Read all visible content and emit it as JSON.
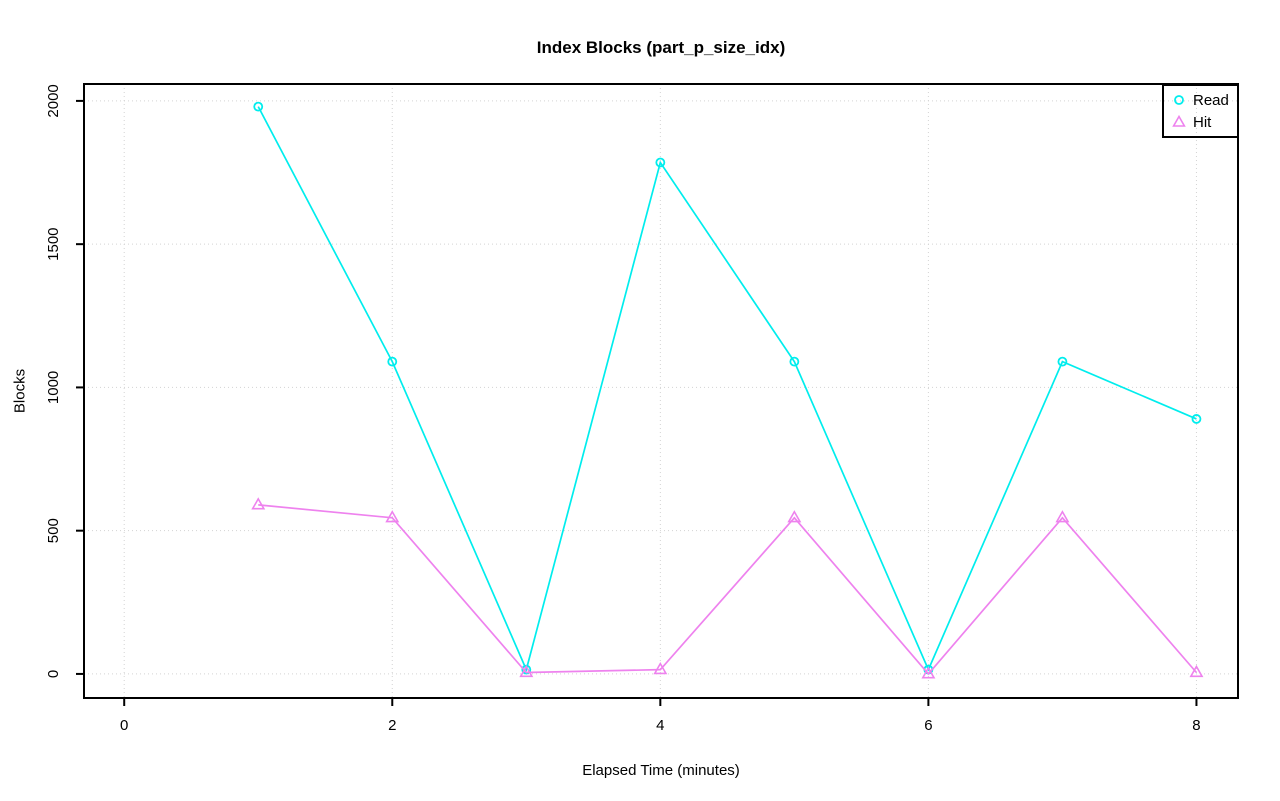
{
  "chart_data": {
    "type": "line",
    "title": "Index Blocks (part_p_size_idx)",
    "xlabel": "Elapsed Time (minutes)",
    "ylabel": "Blocks",
    "x": [
      1,
      2,
      3,
      4,
      5,
      6,
      7,
      8
    ],
    "series": [
      {
        "name": "Read",
        "marker": "circle",
        "color": "#00EDED",
        "values": [
          1980,
          1090,
          15,
          1785,
          1090,
          15,
          1090,
          890
        ]
      },
      {
        "name": "Hit",
        "marker": "triangle",
        "color": "#EE82EE",
        "values": [
          590,
          545,
          5,
          15,
          545,
          0,
          545,
          5
        ]
      }
    ],
    "xticks": [
      0,
      2,
      4,
      6,
      8
    ],
    "yticks": [
      0,
      500,
      1000,
      1500,
      2000
    ],
    "xlim": [
      -0.3,
      8.31
    ],
    "ylim": [
      -84,
      2059
    ],
    "grid": true,
    "grid_style": "dotted",
    "grid_color": "#d3d3d3",
    "axis_color": "#000000",
    "background_color": "#ffffff",
    "legend_position": "top-right"
  }
}
